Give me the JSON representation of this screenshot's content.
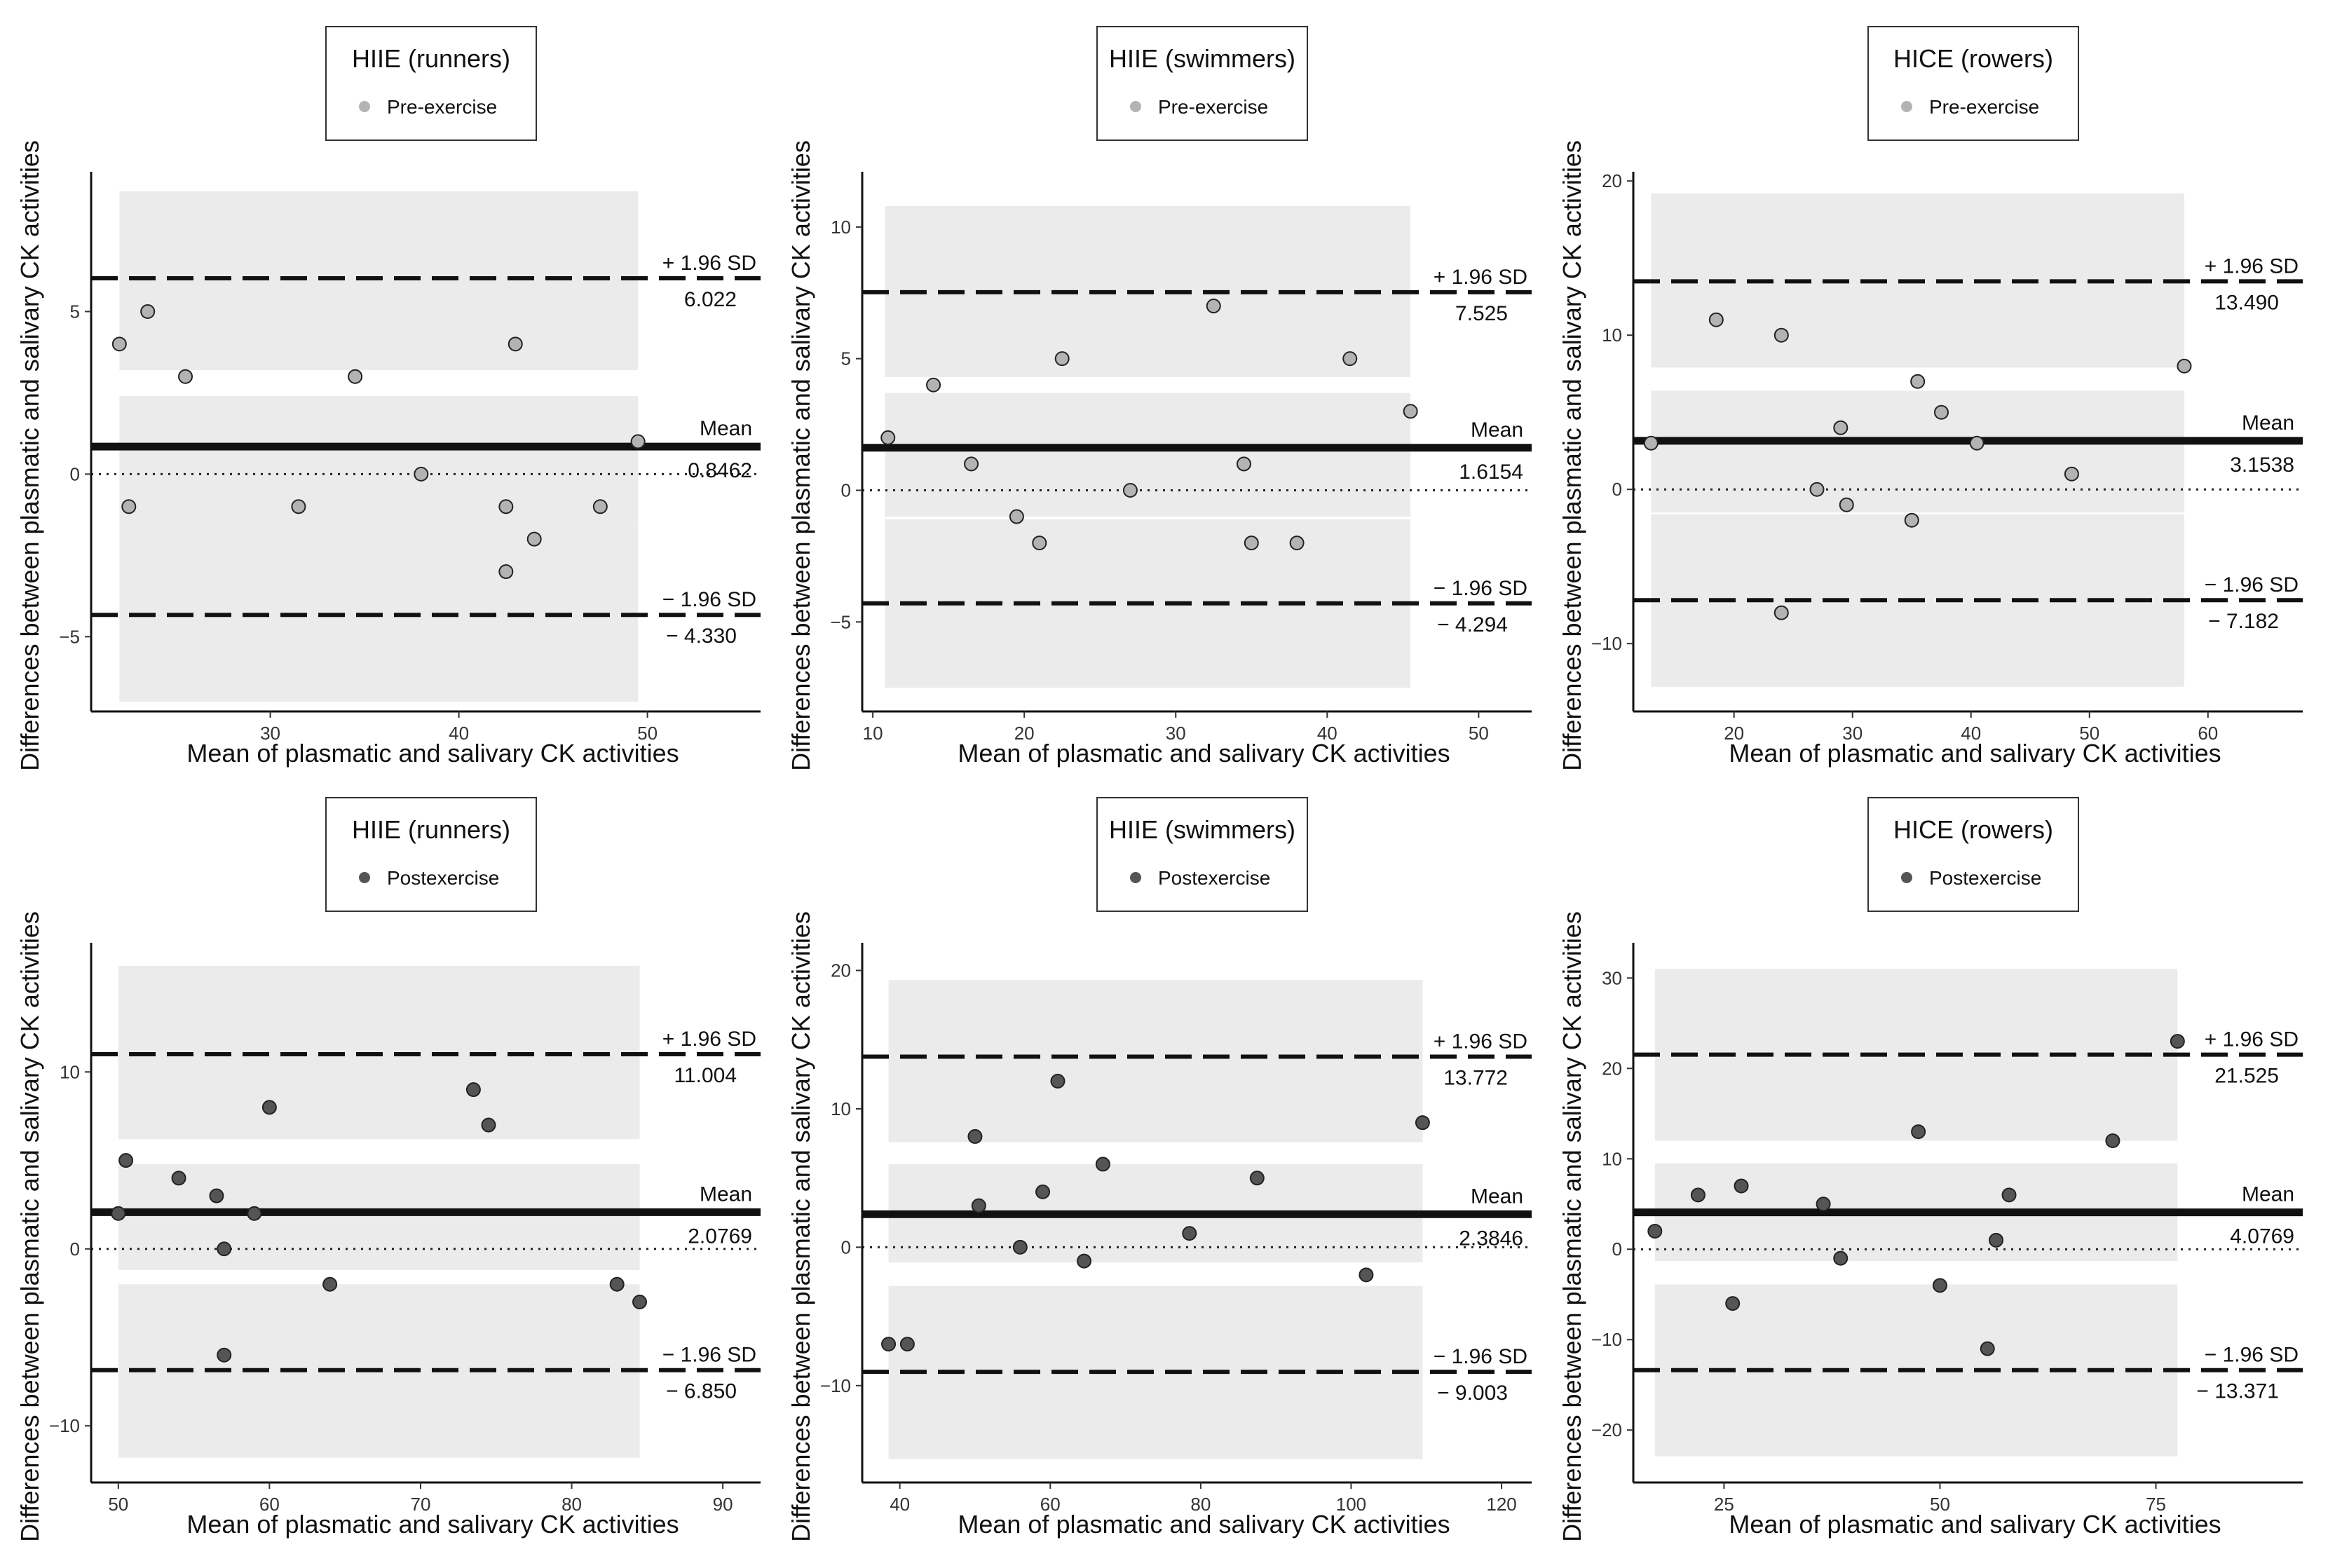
{
  "figure": {
    "y_axis_label": "Differences between plasmatic and salivary CK activities",
    "x_axis_label": "Mean of plasmatic and salivary CK activities",
    "labels": {
      "upper": "+ 1.96 SD",
      "mean": "Mean",
      "lower": "− 1.96 SD"
    }
  },
  "colors": {
    "pre_point": "#b3b3b3",
    "post_point": "#555555",
    "band": "#ebebeb",
    "line": "#111111"
  },
  "chart_data": [
    {
      "type": "scatter",
      "legend_title": "HIIE (runners)",
      "legend_label": "Pre-exercise",
      "point_style": "pre",
      "xlim": [
        20.5,
        56
      ],
      "ylim": [
        -7.3,
        9.3
      ],
      "x_ticks": [
        30,
        40,
        50
      ],
      "y_ticks": [
        -5,
        0,
        5
      ],
      "x_tick_labels": [
        "30",
        "40",
        "50"
      ],
      "y_tick_labels": [
        "−5",
        "0",
        "5"
      ],
      "band_x": [
        22,
        49.5
      ],
      "bands": [
        [
          3.2,
          8.7
        ],
        [
          -1.5,
          2.4
        ],
        [
          -7.0,
          -1.5
        ]
      ],
      "mean": 0.8462,
      "upper": 6.022,
      "lower": -4.33,
      "mean_label": "0.8462",
      "upper_label": "6.022",
      "lower_label": "− 4.330",
      "x": [
        22,
        22.5,
        23.5,
        25.5,
        31.5,
        34.5,
        38,
        42.5,
        42.5,
        43,
        44,
        47.5,
        49.5
      ],
      "y": [
        4,
        -1,
        5,
        3,
        -1,
        3,
        0,
        -1,
        -3,
        4,
        -2,
        -1,
        1
      ]
    },
    {
      "type": "scatter",
      "legend_title": "HIIE (swimmers)",
      "legend_label": "Pre-exercise",
      "point_style": "pre",
      "xlim": [
        9.3,
        53.5
      ],
      "ylim": [
        -8.4,
        12.1
      ],
      "x_ticks": [
        10,
        20,
        30,
        40,
        50
      ],
      "y_ticks": [
        -5,
        0,
        5,
        10
      ],
      "x_tick_labels": [
        "10",
        "20",
        "30",
        "40",
        "50"
      ],
      "y_tick_labels": [
        "−5",
        "0",
        "5",
        "10"
      ],
      "band_x": [
        10.8,
        45.5
      ],
      "bands": [
        [
          4.3,
          10.8
        ],
        [
          -1.0,
          3.7
        ],
        [
          -7.5,
          -1.1
        ]
      ],
      "mean": 1.6154,
      "upper": 7.525,
      "lower": -4.294,
      "mean_label": "1.6154",
      "upper_label": "7.525",
      "lower_label": "− 4.294",
      "x": [
        11,
        14,
        16.5,
        19.5,
        21,
        22.5,
        27,
        32.5,
        34.5,
        35,
        38,
        41.5,
        45.5
      ],
      "y": [
        2,
        4,
        1,
        -1,
        -2,
        5,
        0,
        7,
        1,
        -2,
        -2,
        5,
        3
      ]
    },
    {
      "type": "scatter",
      "legend_title": "HICE (rowers)",
      "legend_label": "Pre-exercise",
      "point_style": "pre",
      "xlim": [
        11.5,
        68
      ],
      "ylim": [
        -14.4,
        20.6
      ],
      "x_ticks": [
        20,
        30,
        40,
        50,
        60
      ],
      "y_ticks": [
        -10,
        0,
        10,
        20
      ],
      "x_tick_labels": [
        "20",
        "30",
        "40",
        "50",
        "60"
      ],
      "y_tick_labels": [
        "−10",
        "0",
        "10",
        "20"
      ],
      "band_x": [
        13,
        58
      ],
      "bands": [
        [
          7.9,
          19.2
        ],
        [
          -1.5,
          6.4
        ],
        [
          -12.8,
          -1.6
        ]
      ],
      "mean": 3.1538,
      "upper": 13.49,
      "lower": -7.182,
      "mean_label": "3.1538",
      "upper_label": "13.490",
      "lower_label": "− 7.182",
      "x": [
        13,
        18.5,
        24,
        24,
        27,
        29,
        29.5,
        35,
        35.5,
        37.5,
        40.5,
        48.5,
        58
      ],
      "y": [
        3,
        11,
        10,
        -8,
        0,
        4,
        -1,
        -2,
        7,
        5,
        3,
        1,
        8
      ]
    },
    {
      "type": "scatter",
      "legend_title": "HIIE (runners)",
      "legend_label": "Postexercise",
      "point_style": "post",
      "xlim": [
        48.2,
        92.5
      ],
      "ylim": [
        -13.2,
        17.3
      ],
      "x_ticks": [
        50,
        60,
        70,
        80,
        90
      ],
      "y_ticks": [
        -10,
        0,
        10
      ],
      "x_tick_labels": [
        "50",
        "60",
        "70",
        "80",
        "90"
      ],
      "y_tick_labels": [
        "−10",
        "0",
        "10"
      ],
      "band_x": [
        50,
        84.5
      ],
      "bands": [
        [
          6.2,
          16.0
        ],
        [
          -1.2,
          4.8
        ],
        [
          -11.8,
          -2.0
        ]
      ],
      "mean": 2.0769,
      "upper": 11.004,
      "lower": -6.85,
      "mean_label": "2.0769",
      "upper_label": "11.004",
      "lower_label": "− 6.850",
      "x": [
        50,
        50.5,
        54,
        56.5,
        57,
        57,
        59,
        60,
        64,
        73.5,
        74.5,
        83,
        84.5
      ],
      "y": [
        2,
        5,
        4,
        3,
        0,
        -6,
        2,
        8,
        -2,
        9,
        7,
        -2,
        -3
      ]
    },
    {
      "type": "scatter",
      "legend_title": "HIIE (swimmers)",
      "legend_label": "Postexercise",
      "point_style": "post",
      "xlim": [
        35,
        124
      ],
      "ylim": [
        -17,
        22
      ],
      "x_ticks": [
        40,
        60,
        80,
        100,
        120
      ],
      "y_ticks": [
        -10,
        0,
        10,
        20
      ],
      "x_tick_labels": [
        "40",
        "60",
        "80",
        "100",
        "120"
      ],
      "y_tick_labels": [
        "−10",
        "0",
        "10",
        "20"
      ],
      "band_x": [
        38.5,
        109.5
      ],
      "bands": [
        [
          7.6,
          19.3
        ],
        [
          -1.1,
          6.0
        ],
        [
          -15.3,
          -2.8
        ]
      ],
      "mean": 2.3846,
      "upper": 13.772,
      "lower": -9.003,
      "mean_label": "2.3846",
      "upper_label": "13.772",
      "lower_label": "− 9.003",
      "x": [
        38.5,
        41,
        50,
        50.5,
        56,
        59,
        61,
        64.5,
        67,
        78.5,
        87.5,
        102,
        109.5
      ],
      "y": [
        -7,
        -7,
        8,
        3,
        0,
        4,
        12,
        -1,
        6,
        1,
        5,
        -2,
        9
      ]
    },
    {
      "type": "scatter",
      "legend_title": "HICE (rowers)",
      "legend_label": "Postexercise",
      "point_style": "post",
      "xlim": [
        14.5,
        92
      ],
      "ylim": [
        -25.8,
        33.9
      ],
      "x_ticks": [
        25,
        50,
        75
      ],
      "y_ticks": [
        -20,
        -10,
        0,
        10,
        20,
        30
      ],
      "x_tick_labels": [
        "25",
        "50",
        "75"
      ],
      "y_tick_labels": [
        "−20",
        "−10",
        "0",
        "10",
        "20",
        "30"
      ],
      "band_x": [
        17,
        77.5
      ],
      "bands": [
        [
          12.0,
          31.0
        ],
        [
          -1.3,
          9.5
        ],
        [
          -22.9,
          -3.9
        ]
      ],
      "mean": 4.0769,
      "upper": 21.525,
      "lower": -13.371,
      "mean_label": "4.0769",
      "upper_label": "21.525",
      "lower_label": "− 13.371",
      "x": [
        17,
        22,
        26,
        27,
        36.5,
        38.5,
        47.5,
        50,
        55.5,
        56.5,
        58,
        70,
        77.5
      ],
      "y": [
        2,
        6,
        -6,
        7,
        5,
        -1,
        13,
        -4,
        -11,
        1,
        6,
        12,
        23
      ]
    }
  ]
}
